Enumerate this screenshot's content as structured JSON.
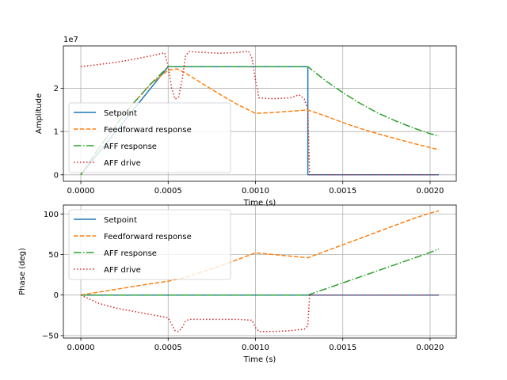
{
  "chart_data": [
    {
      "type": "line",
      "title": "",
      "xlabel": "Time (s)",
      "ylabel": "Amplitude",
      "offset_label": "1e7",
      "xlim": [
        -0.0001,
        0.00215
      ],
      "ylim": [
        -1500000,
        29800000
      ],
      "xticks": [
        0,
        0.0005,
        0.001,
        0.0015,
        0.002
      ],
      "xticklabels": [
        "0.0000",
        "0.0005",
        "0.0010",
        "0.0015",
        "0.0020"
      ],
      "yticks": [
        0,
        10000000,
        20000000
      ],
      "yticklabels": [
        "0",
        "1",
        "2"
      ],
      "grid": true,
      "legend_position": "lower-left",
      "series": [
        {
          "name": "Setpoint",
          "color": "#1f77b4",
          "dash": "solid",
          "x": [
            0,
            0.0005,
            0.0013,
            0.0013,
            0.00205
          ],
          "y": [
            0,
            25000000,
            25000000,
            0,
            0
          ]
        },
        {
          "name": "Feedforward response",
          "color": "#ff7f0e",
          "dash": "dashed",
          "x": [
            0,
            0.0001,
            0.0002,
            0.0003,
            0.0004,
            0.0005,
            0.00055,
            0.0006,
            0.0007,
            0.0008,
            0.0009,
            0.001,
            0.0011,
            0.0012,
            0.0013,
            0.0014,
            0.0015,
            0.0016,
            0.0017,
            0.0018,
            0.0019,
            0.002,
            0.00205
          ],
          "y": [
            0,
            6000000,
            11500000,
            16500000,
            21000000,
            24200000,
            24500000,
            23500000,
            21000000,
            18500000,
            16200000,
            14200000,
            14400000,
            14700000,
            15000000,
            13600000,
            12100000,
            10700000,
            9500000,
            8400000,
            7300000,
            6300000,
            5800000
          ]
        },
        {
          "name": "AFF response",
          "color": "#2ca02c",
          "dash": "dashdot",
          "x": [
            0,
            0.0001,
            0.0002,
            0.0003,
            0.0004,
            0.0005,
            0.0013,
            0.0014,
            0.0015,
            0.0016,
            0.0017,
            0.0018,
            0.0019,
            0.002,
            0.00205
          ],
          "y": [
            0,
            6000000,
            11500000,
            16500000,
            21000000,
            25000000,
            25000000,
            21800000,
            19000000,
            16500000,
            14300000,
            12500000,
            10900000,
            9500000,
            9000000
          ]
        },
        {
          "name": "AFF drive",
          "color": "#d62728",
          "dash": "dotted",
          "x": [
            0,
            0.0001,
            0.0002,
            0.0003,
            0.0004,
            0.00048,
            0.0005,
            0.00052,
            0.00054,
            0.00056,
            0.00058,
            0.0006,
            0.00062,
            0.0007,
            0.0008,
            0.0009,
            0.00096,
            0.00098,
            0.001,
            0.00102,
            0.0011,
            0.0012,
            0.00125,
            0.00128,
            0.0013,
            0.00131,
            0.00205
          ],
          "y": [
            25000000,
            25500000,
            26000000,
            26700000,
            27500000,
            28200000,
            25000000,
            20000000,
            17500000,
            18000000,
            22000000,
            27500000,
            28500000,
            28300000,
            28100000,
            28300000,
            28600000,
            27000000,
            22000000,
            17800000,
            17600000,
            17800000,
            18500000,
            17500000,
            15000000,
            0,
            0
          ]
        }
      ]
    },
    {
      "type": "line",
      "title": "",
      "xlabel": "Time (s)",
      "ylabel": "Phase (deg)",
      "xlim": [
        -0.0001,
        0.00215
      ],
      "ylim": [
        -53,
        111
      ],
      "xticks": [
        0,
        0.0005,
        0.001,
        0.0015,
        0.002
      ],
      "xticklabels": [
        "0.0000",
        "0.0005",
        "0.0010",
        "0.0015",
        "0.0020"
      ],
      "yticks": [
        -50,
        0,
        50,
        100
      ],
      "yticklabels": [
        "−50",
        "0",
        "50",
        "100"
      ],
      "grid": true,
      "legend_position": "upper-left",
      "series": [
        {
          "name": "Setpoint",
          "color": "#1f77b4",
          "dash": "solid",
          "x": [
            0,
            0.00205
          ],
          "y": [
            0,
            0
          ]
        },
        {
          "name": "Feedforward response",
          "color": "#ff7f0e",
          "dash": "dashed",
          "x": [
            0,
            0.0002,
            0.0004,
            0.0005,
            0.0006,
            0.0007,
            0.0008,
            0.0009,
            0.001,
            0.0011,
            0.0012,
            0.0013,
            0.0014,
            0.0015,
            0.0016,
            0.0017,
            0.0018,
            0.0019,
            0.002,
            0.00205
          ],
          "y": [
            0,
            7,
            14,
            17,
            22,
            29,
            36,
            44,
            52,
            50,
            48,
            46,
            54,
            62,
            70,
            78,
            86,
            94,
            101,
            104
          ]
        },
        {
          "name": "AFF response",
          "color": "#2ca02c",
          "dash": "dashdot",
          "x": [
            0,
            0.0013,
            0.0014,
            0.0015,
            0.0016,
            0.0017,
            0.0018,
            0.0019,
            0.002,
            0.00205
          ],
          "y": [
            0,
            0,
            7.5,
            15,
            22.5,
            30,
            37.5,
            45,
            52.5,
            57
          ]
        },
        {
          "name": "AFF drive",
          "color": "#d62728",
          "dash": "dotted",
          "x": [
            0,
            0.0001,
            0.0002,
            0.0003,
            0.0004,
            0.0005,
            0.00052,
            0.00054,
            0.00056,
            0.00058,
            0.0006,
            0.00062,
            0.0007,
            0.0008,
            0.0009,
            0.00098,
            0.001,
            0.00102,
            0.0011,
            0.0012,
            0.00128,
            0.0013,
            0.00131,
            0.00205
          ],
          "y": [
            0,
            -10,
            -16,
            -20,
            -24,
            -28,
            -36,
            -44,
            -45,
            -40,
            -32,
            -30,
            -30,
            -30,
            -30,
            -31,
            -40,
            -45,
            -45,
            -44,
            -42,
            -38,
            0,
            0
          ]
        }
      ]
    }
  ]
}
